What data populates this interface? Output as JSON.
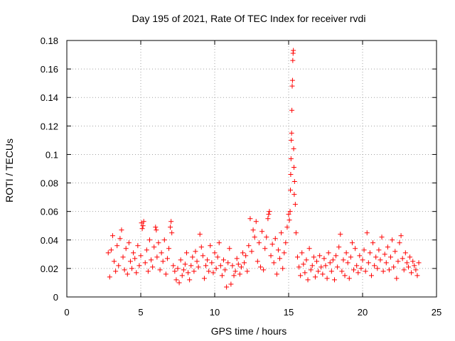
{
  "chart_data": {
    "type": "scatter",
    "title": "Day 195 of 2021, Rate Of TEC Index for receiver rvdi",
    "xlabel": "GPS time / hours",
    "ylabel": "ROTI / TECUs",
    "xlim": [
      0,
      25
    ],
    "ylim": [
      0,
      0.18
    ],
    "x_ticks": [
      0,
      5,
      10,
      15,
      20,
      25
    ],
    "x_tick_labels": [
      "0",
      "5",
      "10",
      "15",
      "20",
      "25"
    ],
    "y_ticks": [
      0,
      0.02,
      0.04,
      0.06,
      0.08,
      0.1,
      0.12,
      0.14,
      0.16,
      0.18
    ],
    "y_tick_labels": [
      "0",
      "0.02",
      "0.04",
      "0.06",
      "0.08",
      "0.1",
      "0.12",
      "0.14",
      "0.16",
      "0.18"
    ],
    "grid": true,
    "marker": "+",
    "color": "#ff0000",
    "series": [
      {
        "name": "ROTI",
        "points": [
          [
            2.8,
            0.031
          ],
          [
            2.9,
            0.014
          ],
          [
            3.0,
            0.033
          ],
          [
            3.1,
            0.043
          ],
          [
            3.2,
            0.025
          ],
          [
            3.3,
            0.018
          ],
          [
            3.4,
            0.036
          ],
          [
            3.5,
            0.022
          ],
          [
            3.6,
            0.041
          ],
          [
            3.7,
            0.047
          ],
          [
            3.8,
            0.028
          ],
          [
            3.9,
            0.019
          ],
          [
            4.0,
            0.034
          ],
          [
            4.1,
            0.016
          ],
          [
            4.2,
            0.038
          ],
          [
            4.3,
            0.025
          ],
          [
            4.4,
            0.02
          ],
          [
            4.5,
            0.031
          ],
          [
            4.6,
            0.027
          ],
          [
            4.7,
            0.017
          ],
          [
            4.8,
            0.036
          ],
          [
            4.9,
            0.022
          ],
          [
            5.0,
            0.029
          ],
          [
            5.05,
            0.052
          ],
          [
            5.1,
            0.048
          ],
          [
            5.15,
            0.05
          ],
          [
            5.2,
            0.053
          ],
          [
            5.3,
            0.024
          ],
          [
            5.4,
            0.033
          ],
          [
            5.5,
            0.018
          ],
          [
            5.6,
            0.04
          ],
          [
            5.7,
            0.026
          ],
          [
            5.8,
            0.021
          ],
          [
            5.9,
            0.035
          ],
          [
            6.0,
            0.049
          ],
          [
            6.05,
            0.047
          ],
          [
            6.1,
            0.028
          ],
          [
            6.2,
            0.038
          ],
          [
            6.3,
            0.019
          ],
          [
            6.4,
            0.031
          ],
          [
            6.5,
            0.025
          ],
          [
            6.6,
            0.04
          ],
          [
            6.7,
            0.016
          ],
          [
            6.8,
            0.027
          ],
          [
            6.9,
            0.034
          ],
          [
            7.0,
            0.049
          ],
          [
            7.05,
            0.053
          ],
          [
            7.1,
            0.045
          ],
          [
            7.2,
            0.022
          ],
          [
            7.3,
            0.018
          ],
          [
            7.4,
            0.012
          ],
          [
            7.5,
            0.02
          ],
          [
            7.6,
            0.01
          ],
          [
            7.7,
            0.026
          ],
          [
            7.8,
            0.015
          ],
          [
            7.9,
            0.019
          ],
          [
            8.0,
            0.023
          ],
          [
            8.1,
            0.031
          ],
          [
            8.2,
            0.017
          ],
          [
            8.3,
            0.012
          ],
          [
            8.4,
            0.022
          ],
          [
            8.5,
            0.028
          ],
          [
            8.6,
            0.018
          ],
          [
            8.7,
            0.032
          ],
          [
            8.8,
            0.025
          ],
          [
            8.9,
            0.021
          ],
          [
            9.0,
            0.044
          ],
          [
            9.1,
            0.035
          ],
          [
            9.2,
            0.029
          ],
          [
            9.3,
            0.013
          ],
          [
            9.4,
            0.022
          ],
          [
            9.5,
            0.026
          ],
          [
            9.6,
            0.018
          ],
          [
            9.7,
            0.036
          ],
          [
            9.8,
            0.024
          ],
          [
            9.9,
            0.017
          ],
          [
            10.0,
            0.031
          ],
          [
            10.1,
            0.02
          ],
          [
            10.2,
            0.028
          ],
          [
            10.3,
            0.038
          ],
          [
            10.4,
            0.022
          ],
          [
            10.5,
            0.015
          ],
          [
            10.6,
            0.026
          ],
          [
            10.7,
            0.019
          ],
          [
            10.8,
            0.007
          ],
          [
            10.9,
            0.024
          ],
          [
            11.0,
            0.034
          ],
          [
            11.1,
            0.009
          ],
          [
            11.2,
            0.022
          ],
          [
            11.3,
            0.015
          ],
          [
            11.4,
            0.018
          ],
          [
            11.5,
            0.027
          ],
          [
            11.6,
            0.023
          ],
          [
            11.7,
            0.016
          ],
          [
            11.8,
            0.021
          ],
          [
            11.9,
            0.031
          ],
          [
            12.0,
            0.024
          ],
          [
            12.1,
            0.029
          ],
          [
            12.2,
            0.018
          ],
          [
            12.3,
            0.036
          ],
          [
            12.4,
            0.055
          ],
          [
            12.5,
            0.032
          ],
          [
            12.6,
            0.047
          ],
          [
            12.7,
            0.042
          ],
          [
            12.8,
            0.053
          ],
          [
            12.9,
            0.025
          ],
          [
            13.0,
            0.038
          ],
          [
            13.1,
            0.021
          ],
          [
            13.2,
            0.046
          ],
          [
            13.3,
            0.019
          ],
          [
            13.4,
            0.034
          ],
          [
            13.5,
            0.042
          ],
          [
            13.6,
            0.055
          ],
          [
            13.65,
            0.058
          ],
          [
            13.7,
            0.06
          ],
          [
            13.8,
            0.029
          ],
          [
            13.9,
            0.037
          ],
          [
            14.0,
            0.024
          ],
          [
            14.1,
            0.041
          ],
          [
            14.2,
            0.016
          ],
          [
            14.3,
            0.033
          ],
          [
            14.4,
            0.027
          ],
          [
            14.5,
            0.045
          ],
          [
            14.6,
            0.02
          ],
          [
            14.7,
            0.031
          ],
          [
            14.8,
            0.038
          ],
          [
            14.9,
            0.049
          ],
          [
            15.0,
            0.058
          ],
          [
            15.05,
            0.054
          ],
          [
            15.1,
            0.06
          ],
          [
            15.12,
            0.075
          ],
          [
            15.14,
            0.086
          ],
          [
            15.16,
            0.097
          ],
          [
            15.18,
            0.11
          ],
          [
            15.2,
            0.115
          ],
          [
            15.22,
            0.131
          ],
          [
            15.24,
            0.148
          ],
          [
            15.26,
            0.152
          ],
          [
            15.28,
            0.166
          ],
          [
            15.3,
            0.171
          ],
          [
            15.32,
            0.173
          ],
          [
            15.34,
            0.104
          ],
          [
            15.36,
            0.091
          ],
          [
            15.38,
            0.072
          ],
          [
            15.4,
            0.081
          ],
          [
            15.45,
            0.065
          ],
          [
            15.5,
            0.045
          ],
          [
            15.6,
            0.028
          ],
          [
            15.7,
            0.021
          ],
          [
            15.8,
            0.015
          ],
          [
            15.9,
            0.031
          ],
          [
            16.0,
            0.023
          ],
          [
            16.1,
            0.017
          ],
          [
            16.2,
            0.026
          ],
          [
            16.3,
            0.012
          ],
          [
            16.4,
            0.034
          ],
          [
            16.5,
            0.019
          ],
          [
            16.6,
            0.022
          ],
          [
            16.7,
            0.028
          ],
          [
            16.8,
            0.014
          ],
          [
            16.9,
            0.025
          ],
          [
            17.0,
            0.018
          ],
          [
            17.1,
            0.029
          ],
          [
            17.2,
            0.021
          ],
          [
            17.3,
            0.016
          ],
          [
            17.4,
            0.027
          ],
          [
            17.5,
            0.022
          ],
          [
            17.6,
            0.013
          ],
          [
            17.7,
            0.031
          ],
          [
            17.8,
            0.024
          ],
          [
            17.9,
            0.018
          ],
          [
            18.0,
            0.026
          ],
          [
            18.1,
            0.012
          ],
          [
            18.2,
            0.029
          ],
          [
            18.3,
            0.021
          ],
          [
            18.4,
            0.035
          ],
          [
            18.5,
            0.044
          ],
          [
            18.6,
            0.018
          ],
          [
            18.7,
            0.026
          ],
          [
            18.8,
            0.015
          ],
          [
            18.9,
            0.031
          ],
          [
            19.0,
            0.024
          ],
          [
            19.1,
            0.013
          ],
          [
            19.2,
            0.028
          ],
          [
            19.3,
            0.038
          ],
          [
            19.4,
            0.019
          ],
          [
            19.5,
            0.034
          ],
          [
            19.6,
            0.022
          ],
          [
            19.7,
            0.017
          ],
          [
            19.8,
            0.029
          ],
          [
            19.9,
            0.02
          ],
          [
            20.0,
            0.026
          ],
          [
            20.1,
            0.033
          ],
          [
            20.2,
            0.018
          ],
          [
            20.3,
            0.045
          ],
          [
            20.4,
            0.024
          ],
          [
            20.5,
            0.031
          ],
          [
            20.6,
            0.015
          ],
          [
            20.7,
            0.038
          ],
          [
            20.8,
            0.022
          ],
          [
            20.9,
            0.028
          ],
          [
            21.0,
            0.02
          ],
          [
            21.1,
            0.033
          ],
          [
            21.2,
            0.026
          ],
          [
            21.3,
            0.042
          ],
          [
            21.4,
            0.018
          ],
          [
            21.5,
            0.03
          ],
          [
            21.6,
            0.024
          ],
          [
            21.7,
            0.035
          ],
          [
            21.8,
            0.019
          ],
          [
            21.9,
            0.028
          ],
          [
            22.0,
            0.04
          ],
          [
            22.1,
            0.021
          ],
          [
            22.2,
            0.032
          ],
          [
            22.3,
            0.013
          ],
          [
            22.4,
            0.025
          ],
          [
            22.5,
            0.038
          ],
          [
            22.6,
            0.043
          ],
          [
            22.7,
            0.027
          ],
          [
            22.8,
            0.019
          ],
          [
            22.9,
            0.031
          ],
          [
            23.0,
            0.024
          ],
          [
            23.1,
            0.021
          ],
          [
            23.2,
            0.028
          ],
          [
            23.3,
            0.017
          ],
          [
            23.4,
            0.025
          ],
          [
            23.5,
            0.022
          ],
          [
            23.6,
            0.019
          ],
          [
            23.7,
            0.015
          ],
          [
            23.8,
            0.024
          ]
        ]
      }
    ]
  }
}
